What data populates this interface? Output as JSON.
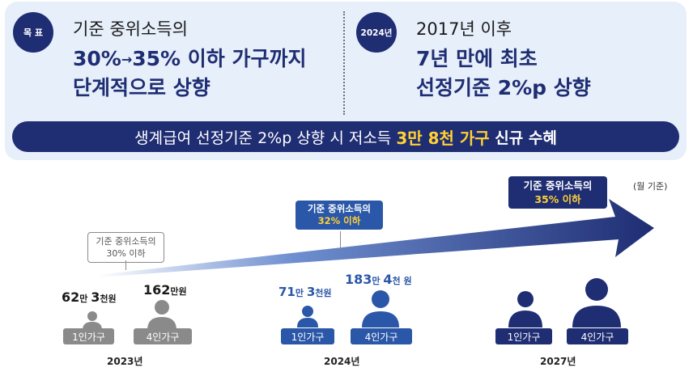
{
  "goal": {
    "badge": "목 표",
    "subtitle": "기준 중위소득의",
    "from_pct": "30%",
    "arrow": "→",
    "to_line": "35% 이하 가구까지",
    "line3": "단계적으로 상향"
  },
  "milestone": {
    "badge": "2024년",
    "subtitle": "2017년 이후",
    "line2": "7년 만에 최초",
    "line3": "선정기준 2%p 상향"
  },
  "banner": {
    "prefix": "생계급여 선정기준 2%p 상향 시 저소득 ",
    "highlight": "3만 8천 가구",
    "suffix": " 신규 수혜"
  },
  "unit_note": "(월 기준)",
  "years": [
    {
      "year": "2023년",
      "criteria_line1": "기준 중위소득의",
      "criteria_line2": "30% 이하",
      "single": {
        "amount_num1": "62",
        "amount_u1": "만 ",
        "amount_num2": "3",
        "amount_u2": "천원",
        "label": "1인가구"
      },
      "family": {
        "amount_num1": "162",
        "amount_u1": "만원",
        "label": "4인가구"
      }
    },
    {
      "year": "2024년",
      "criteria_line1": "기준 중위소득의",
      "criteria_line2": "32% 이하",
      "single": {
        "amount_num1": "71",
        "amount_u1": "만 ",
        "amount_num2": "3",
        "amount_u2": "천원",
        "label": "1인가구"
      },
      "family": {
        "amount_num1": "183",
        "amount_u1": "만 ",
        "amount_num2": "4",
        "amount_u2": "천 원",
        "label": "4인가구"
      }
    },
    {
      "year": "2027년",
      "criteria_line1": "기준 중위소득의",
      "criteria_line2": "35% 이하",
      "single": {
        "label": "1인가구"
      },
      "family": {
        "label": "4인가구"
      }
    }
  ],
  "colors": {
    "navy": "#1f2d73",
    "blue": "#2b57a8",
    "yellow": "#ffd233",
    "gray": "#8a8a8a",
    "panel": "#e6effa"
  },
  "icons": [
    "person-icon",
    "growth-arrow"
  ]
}
